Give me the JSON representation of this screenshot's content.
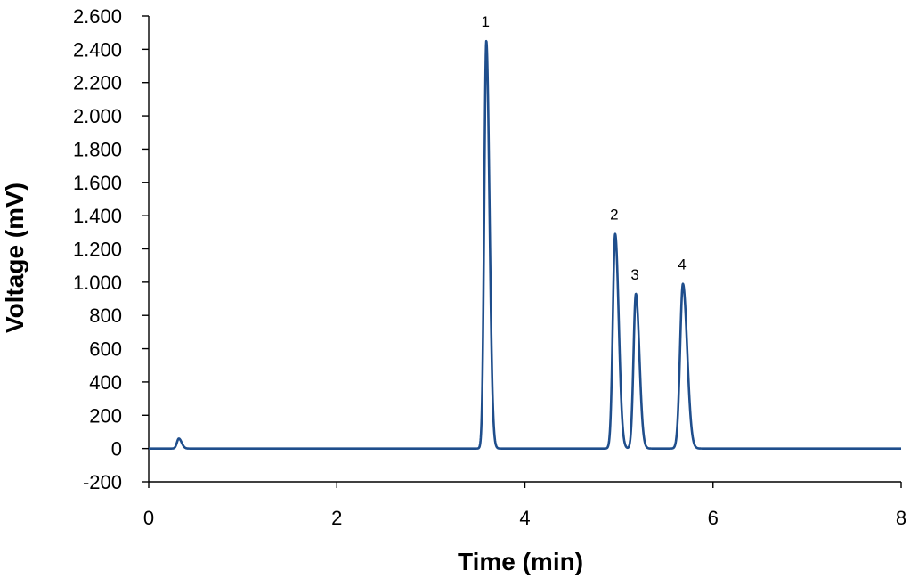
{
  "chart_data": {
    "type": "line",
    "title": "",
    "xlabel": "Time (min)",
    "ylabel": "Voltage (mV)",
    "xlim": [
      0,
      8
    ],
    "ylim": [
      -200,
      2600
    ],
    "x_ticks": [
      0,
      2,
      4,
      6,
      8
    ],
    "x_tick_labels": [
      "0",
      "2",
      "4",
      "6",
      "8"
    ],
    "y_ticks": [
      -200,
      0,
      200,
      400,
      600,
      800,
      1000,
      1200,
      1400,
      1600,
      1800,
      2000,
      2200,
      2400,
      2600
    ],
    "y_tick_labels": [
      "-200",
      "0",
      "200",
      "400",
      "600",
      "800",
      "1.000",
      "1.200",
      "1.400",
      "1.600",
      "1.800",
      "2.000",
      "2.200",
      "2.400",
      "2.600"
    ],
    "grid": false,
    "line_color": "#1f4e8c",
    "series": [
      {
        "peaks": [
          {
            "label": "",
            "x": 0.32,
            "y": 60,
            "width": 0.02
          },
          {
            "label": "1",
            "x": 3.59,
            "y": 2450,
            "width": 0.022
          },
          {
            "label": "2",
            "x": 4.96,
            "y": 1290,
            "width": 0.025
          },
          {
            "label": "3",
            "x": 5.18,
            "y": 930,
            "width": 0.025
          },
          {
            "label": "4",
            "x": 5.68,
            "y": 990,
            "width": 0.03
          }
        ],
        "baseline": 0
      }
    ]
  }
}
